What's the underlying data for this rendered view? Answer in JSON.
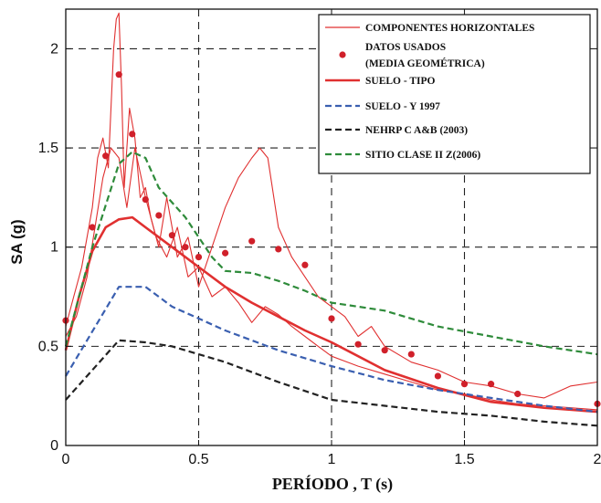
{
  "chart_data": {
    "type": "line",
    "xlabel": "PERÍODO , T (s)",
    "ylabel": "SA (g)",
    "xlim": [
      0,
      2
    ],
    "ylim": [
      0,
      2.2
    ],
    "x_ticks": [
      0,
      0.5,
      1,
      1.5,
      2
    ],
    "x_tick_labels": [
      "0",
      "0.5",
      "1",
      "1.5",
      "2"
    ],
    "y_ticks": [
      0,
      0.5,
      1,
      1.5,
      2
    ],
    "y_tick_labels": [
      "0",
      "0.5",
      "1",
      "1.5",
      "2"
    ],
    "grid": "dashed at major ticks",
    "legend_position": "top-right",
    "legend": [
      "COMPONENTES HORIZONTALES",
      "DATOS USADOS",
      "(MEDIA GEOMÉTRICA)",
      "SUELO - TIPO",
      "SUELO - Y 1997",
      "NEHRP C A&B (2003)",
      "SITIO CLASE II Z(2006)"
    ],
    "series": [
      {
        "name": "COMPONENTES HORIZONTALES",
        "style": "thin-solid",
        "color": "#e03030",
        "x": [
          0,
          0.03,
          0.06,
          0.08,
          0.1,
          0.12,
          0.14,
          0.16,
          0.18,
          0.19,
          0.2,
          0.21,
          0.22,
          0.24,
          0.26,
          0.28,
          0.3,
          0.32,
          0.35,
          0.38,
          0.42,
          0.46,
          0.5,
          0.55,
          0.6,
          0.65,
          0.7,
          0.73,
          0.76,
          0.8,
          0.85,
          0.9,
          0.95,
          1.0,
          1.05,
          1.1,
          1.15,
          1.2,
          1.3,
          1.4,
          1.5,
          1.6,
          1.7,
          1.8,
          1.9,
          2.0
        ],
        "values": [
          0.6,
          0.75,
          0.9,
          1.05,
          1.2,
          1.45,
          1.55,
          1.4,
          2.0,
          2.15,
          2.18,
          1.8,
          1.3,
          1.7,
          1.55,
          1.25,
          1.3,
          1.15,
          1.0,
          1.25,
          0.95,
          1.05,
          0.8,
          1.0,
          1.2,
          1.35,
          1.45,
          1.5,
          1.45,
          1.1,
          0.95,
          0.85,
          0.75,
          0.7,
          0.65,
          0.55,
          0.6,
          0.5,
          0.42,
          0.38,
          0.32,
          0.3,
          0.26,
          0.24,
          0.3,
          0.32
        ]
      },
      {
        "name": "COMPONENTES HORIZONTALES",
        "style": "thin-solid",
        "color": "#e03030",
        "x": [
          0,
          0.04,
          0.08,
          0.11,
          0.14,
          0.17,
          0.2,
          0.23,
          0.26,
          0.3,
          0.34,
          0.38,
          0.42,
          0.46,
          0.5,
          0.55,
          0.6,
          0.65,
          0.7,
          0.75,
          0.8,
          0.85,
          0.9,
          0.95,
          1.0,
          1.1,
          1.2,
          1.3,
          1.4,
          1.5,
          1.6,
          1.7,
          1.8,
          1.9,
          2.0
        ],
        "values": [
          0.55,
          0.65,
          0.85,
          1.1,
          1.35,
          1.5,
          1.45,
          1.2,
          1.5,
          1.25,
          1.05,
          0.95,
          1.1,
          0.85,
          0.9,
          0.75,
          0.8,
          0.72,
          0.62,
          0.7,
          0.66,
          0.6,
          0.55,
          0.5,
          0.45,
          0.4,
          0.36,
          0.32,
          0.28,
          0.26,
          0.23,
          0.21,
          0.2,
          0.19,
          0.18
        ]
      },
      {
        "name": "SUELO - TIPO",
        "style": "thick-solid",
        "color": "#e03030",
        "x": [
          0,
          0.05,
          0.1,
          0.15,
          0.2,
          0.25,
          0.3,
          0.4,
          0.5,
          0.6,
          0.7,
          0.8,
          0.9,
          1.0,
          1.2,
          1.4,
          1.6,
          1.8,
          2.0
        ],
        "values": [
          0.48,
          0.75,
          0.98,
          1.1,
          1.14,
          1.15,
          1.1,
          1.0,
          0.9,
          0.8,
          0.72,
          0.65,
          0.58,
          0.52,
          0.38,
          0.29,
          0.22,
          0.19,
          0.17
        ]
      },
      {
        "name": "SUELO - Y 1997",
        "style": "dashed",
        "color": "#3a5fb0",
        "x": [
          0,
          0.2,
          0.3,
          0.4,
          0.5,
          0.6,
          0.8,
          1.0,
          1.2,
          1.4,
          1.6,
          1.8,
          2.0
        ],
        "values": [
          0.35,
          0.8,
          0.8,
          0.7,
          0.64,
          0.58,
          0.48,
          0.4,
          0.33,
          0.28,
          0.24,
          0.2,
          0.17
        ]
      },
      {
        "name": "NEHRP C A&B (2003)",
        "style": "dashed",
        "color": "#222222",
        "x": [
          0,
          0.2,
          0.3,
          0.4,
          0.5,
          0.6,
          0.8,
          1.0,
          1.2,
          1.4,
          1.6,
          1.8,
          2.0
        ],
        "values": [
          0.23,
          0.53,
          0.52,
          0.5,
          0.46,
          0.42,
          0.32,
          0.23,
          0.2,
          0.17,
          0.15,
          0.12,
          0.1
        ]
      },
      {
        "name": "SITIO CLASE II Z(2006)",
        "style": "dashed",
        "color": "#2e8b3a",
        "x": [
          0,
          0.1,
          0.2,
          0.25,
          0.3,
          0.35,
          0.45,
          0.55,
          0.6,
          0.7,
          0.8,
          0.9,
          1.0,
          1.1,
          1.2,
          1.4,
          1.6,
          1.8,
          2.0
        ],
        "values": [
          0.5,
          1.0,
          1.42,
          1.48,
          1.45,
          1.3,
          1.15,
          0.95,
          0.88,
          0.87,
          0.83,
          0.78,
          0.72,
          0.7,
          0.68,
          0.6,
          0.55,
          0.5,
          0.46
        ]
      },
      {
        "name": "DATOS USADOS (MEDIA GEOMÉTRICA)",
        "style": "markers",
        "color": "#d0202a",
        "x": [
          0,
          0.1,
          0.15,
          0.2,
          0.25,
          0.3,
          0.35,
          0.4,
          0.45,
          0.5,
          0.6,
          0.7,
          0.8,
          0.9,
          1.0,
          1.1,
          1.2,
          1.3,
          1.4,
          1.5,
          1.6,
          1.7,
          2.0
        ],
        "values": [
          0.63,
          1.1,
          1.46,
          1.87,
          1.57,
          1.24,
          1.16,
          1.06,
          1.0,
          0.95,
          0.97,
          1.03,
          0.99,
          0.91,
          0.64,
          0.51,
          0.48,
          0.46,
          0.35,
          0.31,
          0.31,
          0.26,
          0.21
        ]
      }
    ]
  }
}
